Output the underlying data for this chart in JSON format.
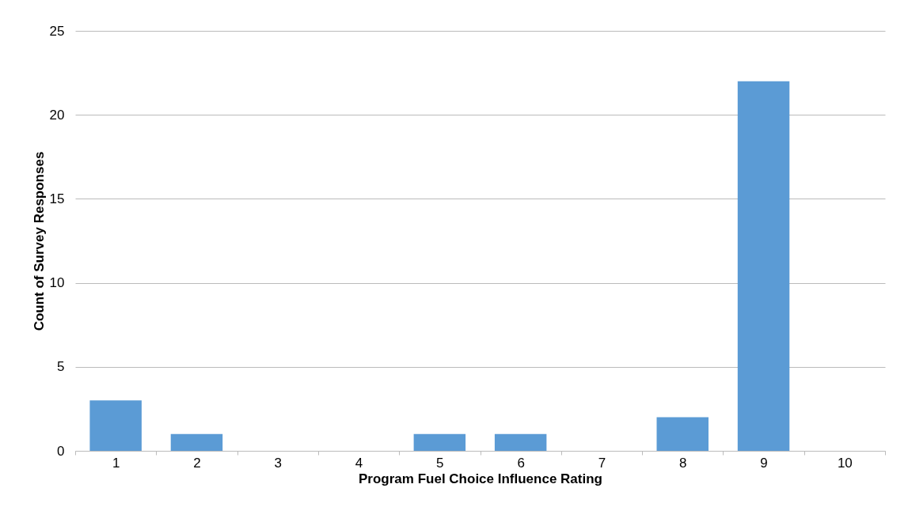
{
  "chart_data": {
    "type": "bar",
    "xlabel": "Program Fuel Choice Influence Rating",
    "ylabel": "Count of Survey Responses",
    "categories": [
      "1",
      "2",
      "3",
      "4",
      "5",
      "6",
      "7",
      "8",
      "9",
      "10"
    ],
    "values": [
      3,
      1,
      0,
      0,
      1,
      1,
      0,
      2,
      22,
      0
    ],
    "color": "#5b9bd5",
    "ylim": [
      0,
      25
    ],
    "yticks": [
      0,
      5,
      10,
      15,
      20,
      25
    ],
    "grid": "y"
  }
}
